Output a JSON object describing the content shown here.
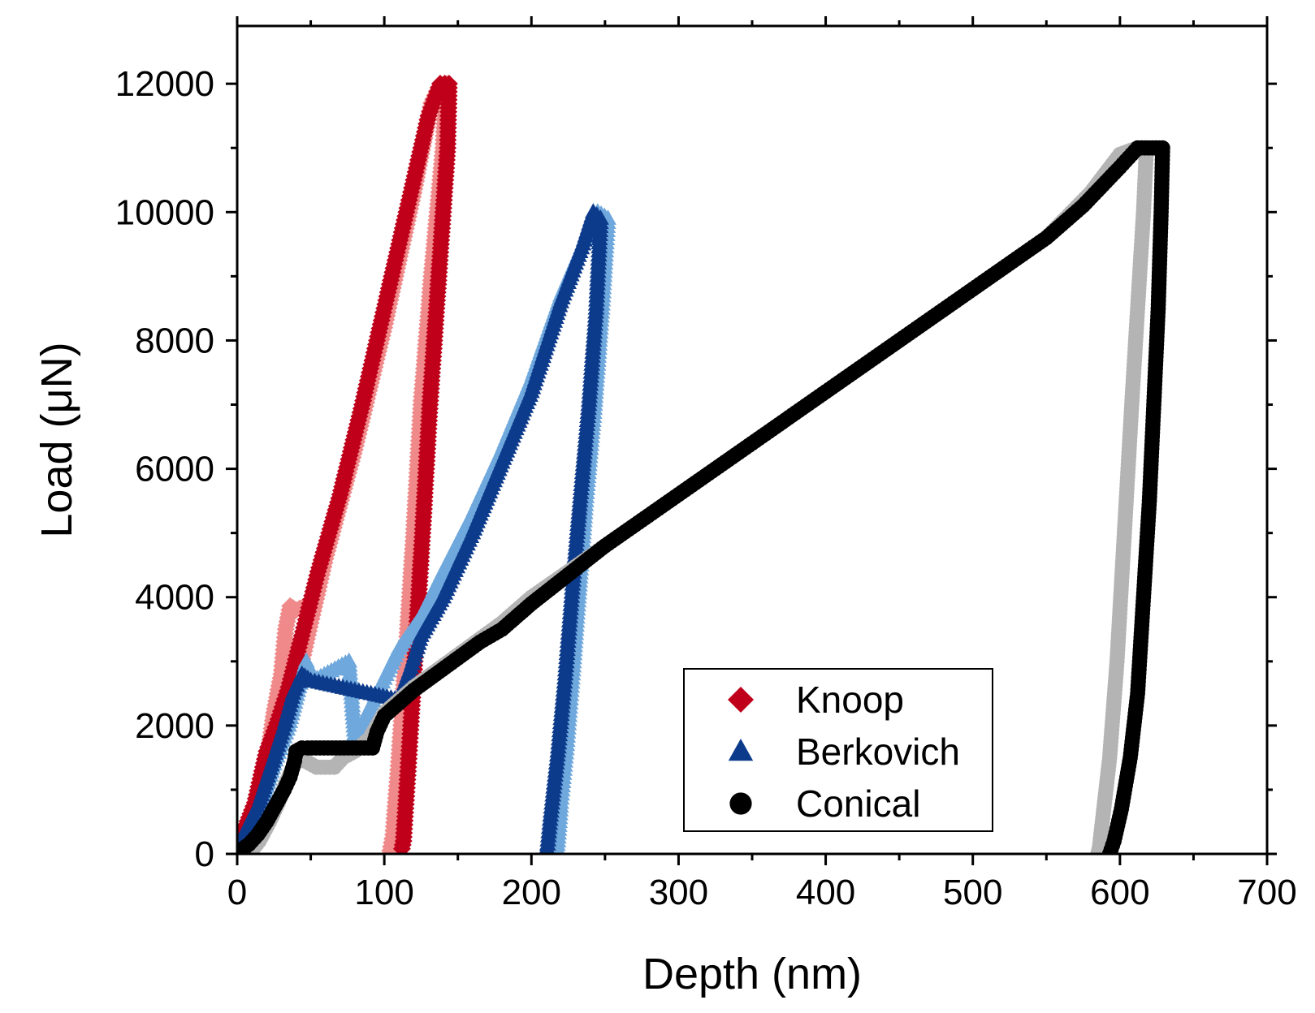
{
  "chart_data": {
    "type": "scatter",
    "title": "",
    "xlabel": "Depth (nm)",
    "ylabel": "Load (μN)",
    "xlim": [
      0,
      700
    ],
    "ylim": [
      0,
      12900
    ],
    "xticks": [
      0,
      100,
      200,
      300,
      400,
      500,
      600,
      700
    ],
    "yticks": [
      0,
      2000,
      4000,
      6000,
      8000,
      10000,
      12000
    ],
    "xtick_labels": [
      "0",
      "100",
      "200",
      "300",
      "400",
      "500",
      "600",
      "700"
    ],
    "ytick_labels": [
      "0",
      "2000",
      "4000",
      "6000",
      "8000",
      "10000",
      "12000"
    ],
    "legend_position": "bottom-right",
    "series": [
      {
        "name": "Knoop light",
        "marker": "diamond",
        "color": "#f08a8a",
        "legend": false,
        "points": [
          [
            0,
            100
          ],
          [
            10,
            600
          ],
          [
            20,
            1400
          ],
          [
            25,
            2200
          ],
          [
            30,
            2800
          ],
          [
            33,
            3500
          ],
          [
            36,
            3860
          ],
          [
            40,
            3800
          ],
          [
            45,
            3850
          ],
          [
            50,
            3820
          ],
          [
            40,
            2600
          ],
          [
            60,
            4600
          ],
          [
            80,
            6300
          ],
          [
            100,
            8200
          ],
          [
            120,
            10300
          ],
          [
            132,
            11700
          ],
          [
            138,
            12000
          ],
          [
            142,
            12000
          ],
          [
            140,
            11000
          ],
          [
            132,
            9000
          ],
          [
            125,
            7000
          ],
          [
            120,
            5000
          ],
          [
            115,
            3200
          ],
          [
            110,
            1500
          ],
          [
            106,
            300
          ],
          [
            104,
            50
          ]
        ]
      },
      {
        "name": "Knoop",
        "marker": "diamond",
        "color": "#c0001a",
        "legend": true,
        "points": [
          [
            0,
            100
          ],
          [
            12,
            800
          ],
          [
            20,
            1600
          ],
          [
            28,
            2100
          ],
          [
            35,
            2600
          ],
          [
            44,
            3400
          ],
          [
            55,
            4400
          ],
          [
            70,
            5600
          ],
          [
            85,
            7000
          ],
          [
            100,
            8500
          ],
          [
            115,
            10000
          ],
          [
            130,
            11500
          ],
          [
            138,
            12000
          ],
          [
            144,
            12000
          ],
          [
            143,
            11000
          ],
          [
            137,
            9000
          ],
          [
            131,
            7000
          ],
          [
            126,
            5000
          ],
          [
            122,
            3500
          ],
          [
            118,
            2000
          ],
          [
            115,
            900
          ],
          [
            113,
            200
          ],
          [
            112,
            80
          ]
        ]
      },
      {
        "name": "Berkovich light",
        "marker": "triangle",
        "color": "#6fa8dc",
        "legend": false,
        "points": [
          [
            0,
            100
          ],
          [
            15,
            700
          ],
          [
            25,
            1400
          ],
          [
            35,
            2000
          ],
          [
            42,
            2600
          ],
          [
            47,
            3000
          ],
          [
            52,
            2700
          ],
          [
            76,
            3000
          ],
          [
            80,
            1800
          ],
          [
            95,
            2500
          ],
          [
            110,
            3200
          ],
          [
            125,
            3700
          ],
          [
            140,
            4400
          ],
          [
            160,
            5300
          ],
          [
            180,
            6300
          ],
          [
            200,
            7400
          ],
          [
            220,
            8700
          ],
          [
            235,
            9500
          ],
          [
            245,
            10000
          ],
          [
            252,
            9900
          ],
          [
            248,
            8500
          ],
          [
            243,
            7000
          ],
          [
            237,
            5500
          ],
          [
            232,
            4000
          ],
          [
            228,
            2800
          ],
          [
            224,
            1700
          ],
          [
            220,
            800
          ],
          [
            218,
            200
          ],
          [
            217,
            30
          ]
        ]
      },
      {
        "name": "Berkovich",
        "marker": "triangle",
        "color": "#0d3b8c",
        "legend": true,
        "points": [
          [
            0,
            100
          ],
          [
            15,
            800
          ],
          [
            25,
            1500
          ],
          [
            32,
            2000
          ],
          [
            38,
            2500
          ],
          [
            44,
            2800
          ],
          [
            50,
            2700
          ],
          [
            110,
            2400
          ],
          [
            118,
            2900
          ],
          [
            125,
            3400
          ],
          [
            140,
            4000
          ],
          [
            160,
            5000
          ],
          [
            180,
            6100
          ],
          [
            200,
            7200
          ],
          [
            220,
            8600
          ],
          [
            235,
            9500
          ],
          [
            242,
            10000
          ],
          [
            247,
            9900
          ],
          [
            244,
            8500
          ],
          [
            239,
            7000
          ],
          [
            233,
            5500
          ],
          [
            228,
            4200
          ],
          [
            223,
            2800
          ],
          [
            218,
            1600
          ],
          [
            213,
            600
          ],
          [
            211,
            150
          ],
          [
            210,
            30
          ]
        ]
      },
      {
        "name": "Conical light",
        "marker": "circle",
        "color": "#b4b4b4",
        "legend": false,
        "points": [
          [
            8,
            0
          ],
          [
            15,
            200
          ],
          [
            22,
            500
          ],
          [
            28,
            800
          ],
          [
            33,
            1100
          ],
          [
            38,
            1350
          ],
          [
            42,
            1500
          ],
          [
            54,
            1350
          ],
          [
            66,
            1350
          ],
          [
            72,
            1500
          ],
          [
            80,
            1600
          ],
          [
            85,
            1700
          ],
          [
            90,
            1800
          ],
          [
            100,
            2200
          ],
          [
            120,
            2600
          ],
          [
            150,
            3100
          ],
          [
            180,
            3600
          ],
          [
            200,
            4000
          ],
          [
            250,
            4800
          ],
          [
            300,
            5600
          ],
          [
            350,
            6400
          ],
          [
            400,
            7200
          ],
          [
            450,
            8000
          ],
          [
            500,
            8800
          ],
          [
            550,
            9600
          ],
          [
            580,
            10300
          ],
          [
            600,
            10900
          ],
          [
            612,
            11000
          ],
          [
            618,
            11000
          ],
          [
            616,
            10000
          ],
          [
            612,
            8500
          ],
          [
            608,
            7000
          ],
          [
            603,
            5000
          ],
          [
            598,
            3000
          ],
          [
            593,
            1500
          ],
          [
            588,
            500
          ],
          [
            586,
            100
          ],
          [
            585,
            0
          ]
        ]
      },
      {
        "name": "Conical",
        "marker": "circle",
        "color": "#000000",
        "legend": true,
        "points": [
          [
            2,
            50
          ],
          [
            8,
            150
          ],
          [
            14,
            300
          ],
          [
            20,
            500
          ],
          [
            26,
            750
          ],
          [
            32,
            1000
          ],
          [
            36,
            1200
          ],
          [
            39,
            1450
          ],
          [
            40,
            1600
          ],
          [
            44,
            1650
          ],
          [
            48,
            1650
          ],
          [
            92,
            1650
          ],
          [
            95,
            1900
          ],
          [
            100,
            2150
          ],
          [
            110,
            2350
          ],
          [
            120,
            2550
          ],
          [
            135,
            2800
          ],
          [
            150,
            3050
          ],
          [
            165,
            3300
          ],
          [
            180,
            3500
          ],
          [
            200,
            3900
          ],
          [
            225,
            4350
          ],
          [
            250,
            4800
          ],
          [
            275,
            5200
          ],
          [
            300,
            5600
          ],
          [
            325,
            6000
          ],
          [
            350,
            6400
          ],
          [
            375,
            6800
          ],
          [
            400,
            7200
          ],
          [
            425,
            7600
          ],
          [
            450,
            8000
          ],
          [
            475,
            8400
          ],
          [
            500,
            8800
          ],
          [
            525,
            9200
          ],
          [
            550,
            9600
          ],
          [
            575,
            10100
          ],
          [
            600,
            10700
          ],
          [
            612,
            11000
          ],
          [
            622,
            11000
          ],
          [
            629,
            11000
          ],
          [
            628,
            10000
          ],
          [
            626,
            8500
          ],
          [
            623,
            7000
          ],
          [
            620,
            5500
          ],
          [
            616,
            4000
          ],
          [
            612,
            2500
          ],
          [
            607,
            1500
          ],
          [
            601,
            700
          ],
          [
            596,
            200
          ],
          [
            593,
            0
          ]
        ]
      }
    ]
  }
}
